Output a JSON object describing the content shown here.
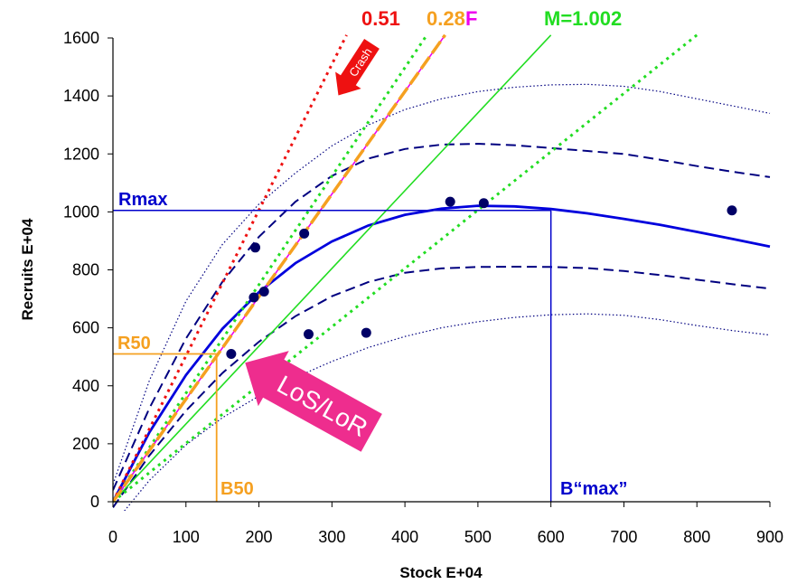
{
  "chart_data": {
    "type": "scatter",
    "xlabel": "Stock E+04",
    "ylabel": "Recruits E+04",
    "xlim": [
      0,
      900
    ],
    "ylim": [
      0,
      1600
    ],
    "xticks": [
      "0",
      "100",
      "200",
      "300",
      "400",
      "500",
      "600",
      "700",
      "800",
      "900"
    ],
    "yticks": [
      "0",
      "200",
      "400",
      "600",
      "800",
      "1000",
      "1200",
      "1400",
      "1600"
    ],
    "grid": false,
    "points": [
      {
        "x": 162,
        "y": 510
      },
      {
        "x": 193,
        "y": 705
      },
      {
        "x": 195,
        "y": 877
      },
      {
        "x": 207,
        "y": 725
      },
      {
        "x": 262,
        "y": 925
      },
      {
        "x": 268,
        "y": 578
      },
      {
        "x": 347,
        "y": 583
      },
      {
        "x": 462,
        "y": 1035
      },
      {
        "x": 508,
        "y": 1030
      },
      {
        "x": 848,
        "y": 1005
      }
    ],
    "fitted_curve": {
      "color": "#0000dd",
      "x": [
        0,
        50,
        100,
        150,
        200,
        250,
        300,
        350,
        400,
        450,
        500,
        550,
        600,
        650,
        700,
        750,
        800,
        850,
        900
      ],
      "y": [
        0,
        240,
        437,
        597,
        723,
        823,
        898,
        953,
        990,
        1011,
        1021,
        1019,
        1010,
        995,
        976,
        955,
        931,
        906,
        880
      ]
    },
    "dashed_upper": {
      "x": [
        0,
        50,
        100,
        150,
        200,
        250,
        300,
        350,
        400,
        450,
        500,
        550,
        600,
        650,
        700,
        750,
        800,
        850,
        900
      ],
      "y": [
        40,
        323,
        563,
        759,
        914,
        1035,
        1124,
        1184,
        1217,
        1232,
        1235,
        1230,
        1220,
        1210,
        1200,
        1180,
        1158,
        1138,
        1120
      ]
    },
    "dashed_lower": {
      "x": [
        0,
        50,
        100,
        150,
        200,
        250,
        300,
        350,
        400,
        450,
        500,
        550,
        600,
        650,
        700,
        750,
        800,
        850,
        900
      ],
      "y": [
        -20,
        160,
        314,
        444,
        552,
        640,
        709,
        758,
        790,
        805,
        810,
        811,
        810,
        806,
        796,
        782,
        766,
        750,
        735
      ]
    },
    "dotted_upper": {
      "x": [
        0,
        50,
        100,
        150,
        200,
        250,
        300,
        350,
        400,
        450,
        500,
        550,
        600,
        650,
        700,
        750,
        800,
        850,
        900
      ],
      "y": [
        60,
        419,
        692,
        888,
        1027,
        1134,
        1228,
        1300,
        1353,
        1390,
        1415,
        1430,
        1438,
        1440,
        1433,
        1415,
        1390,
        1365,
        1340
      ]
    },
    "dotted_lower": {
      "x": [
        0,
        50,
        100,
        150,
        200,
        250,
        300,
        350,
        400,
        450,
        500,
        550,
        600,
        650,
        700,
        750,
        800,
        850,
        900
      ],
      "y": [
        -80,
        74,
        196,
        290,
        365,
        429,
        484,
        532,
        570,
        600,
        621,
        636,
        645,
        648,
        643,
        628,
        608,
        590,
        575
      ]
    },
    "lines": [
      {
        "label": "0.51",
        "color": "#ee1111",
        "style": "dotted",
        "x": [
          0,
          320
        ],
        "y": [
          0,
          1610
        ]
      },
      {
        "label": "0.28",
        "color": "#f5a020",
        "style": "dashed",
        "x": [
          0,
          455
        ],
        "y": [
          0,
          1610
        ]
      },
      {
        "label": "F",
        "color": "#ee00ee",
        "style": "solid",
        "x": [
          0,
          455
        ],
        "y": [
          0,
          1610
        ]
      },
      {
        "label": "M=1.002",
        "color": "#22dd22",
        "style": "solid",
        "x": [
          0,
          600
        ],
        "y": [
          0,
          1610
        ]
      },
      {
        "label": "",
        "color": "#22dd22",
        "style": "dotted",
        "x": [
          0,
          430
        ],
        "y": [
          0,
          1610
        ]
      },
      {
        "label": "",
        "color": "#22dd22",
        "style": "dotted",
        "x": [
          0,
          800
        ],
        "y": [
          0,
          1610
        ]
      }
    ],
    "reference_lines": {
      "Rmax": {
        "label": "Rmax",
        "y": 1005,
        "color": "#0000cc"
      },
      "Bmax": {
        "label": "B“max”",
        "x": 600,
        "color": "#0000cc"
      },
      "R50": {
        "label": "R50",
        "y": 510,
        "color": "#f5a020"
      },
      "B50": {
        "label": "B50",
        "x": 142,
        "color": "#f5a020"
      }
    },
    "annotations": {
      "crash": "Crash",
      "los": "LoS/LoR"
    }
  }
}
